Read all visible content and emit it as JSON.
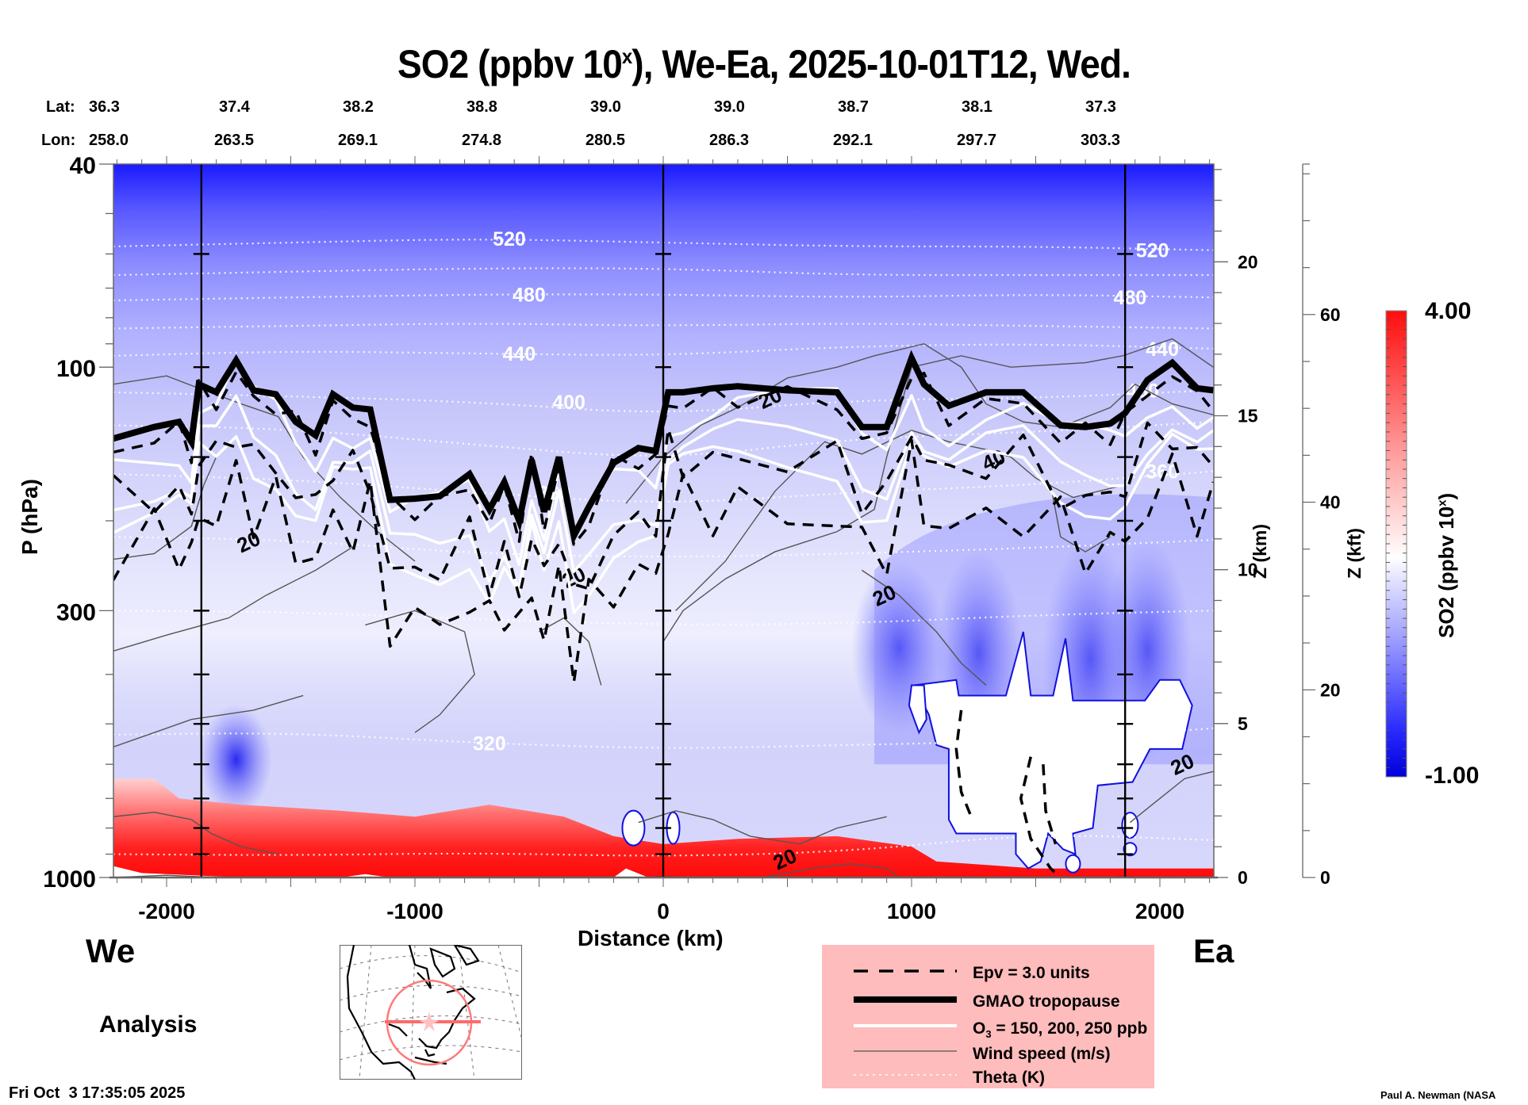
{
  "title": {
    "prefix": "SO2 (ppbv 10",
    "sup": "x",
    "suffix": "), We-Ea, 2025-10-01T12, Wed."
  },
  "location_header": {
    "lat_label": "Lat:",
    "lon_label": "Lon:",
    "lat": [
      "36.3",
      "37.4",
      "38.2",
      "38.8",
      "39.0",
      "39.0",
      "38.7",
      "38.1",
      "37.3"
    ],
    "lon": [
      "258.0",
      "263.5",
      "269.1",
      "274.8",
      "280.5",
      "286.3",
      "292.1",
      "297.7",
      "303.3"
    ]
  },
  "labels": {
    "west": "We",
    "east": "Ea",
    "analysis": "Analysis",
    "timestamp": "Fri Oct  3 17:35:05 2025",
    "credit": "Paul A. Newman (NASA"
  },
  "legend": {
    "items": [
      {
        "key": "epv",
        "text": "Epv = 3.0 units"
      },
      {
        "key": "tropopause",
        "text": "GMAO tropopause"
      },
      {
        "key": "ozone",
        "text_pre": "O",
        "text_sub": "3",
        "text_post": " = 150, 200, 250 ppb"
      },
      {
        "key": "wind",
        "text": "Wind speed (m/s)"
      },
      {
        "key": "theta",
        "text": "Theta (K)"
      }
    ]
  },
  "colors": {
    "cmap_low": "#0000e6",
    "cmap_mid": "#ffffff",
    "cmap_high": "#ff0000",
    "legend_bg": "#ffbcbc",
    "inset_track": "#ff7070"
  },
  "chart_data": {
    "type": "heatmap",
    "title": "SO2 (ppbv 10^x), We-Ea, 2025-10-01T12, Wed.",
    "xlabel": "Distance (km)",
    "ylabel": "P (hPa)",
    "ylabel_right": "Z (km)",
    "ylabel_right2": "Z (kft)",
    "xlim": [
      -2215,
      2215
    ],
    "ylim": [
      1000,
      40
    ],
    "yscale": "log",
    "x_ticks": [
      -2000,
      -1000,
      0,
      1000,
      2000
    ],
    "x_tick_labels": [
      "-2000",
      "-1000",
      "0",
      "1000",
      "2000"
    ],
    "y_ticks": [
      40,
      100,
      300,
      1000
    ],
    "y_tick_labels": [
      "40",
      "100",
      "300",
      "1000"
    ],
    "z_km_ticks": [
      0,
      5,
      10,
      15,
      20
    ],
    "z_km_tick_pressure": [
      1000,
      535,
      265,
      123,
      56
    ],
    "z_kft_ticks": [
      0,
      20,
      40,
      60
    ],
    "z_kft_tick_pressure": [
      1000,
      545,
      290,
      146
    ],
    "section_markers_km": [
      -1860,
      0,
      1860
    ],
    "colorbar": {
      "label": "SO2 (ppbv 10^x)",
      "min": -1.0,
      "max": 4.0,
      "min_label": "-1.00",
      "max_label": "4.00",
      "levels": 50
    },
    "theta_contours": [
      {
        "value": 520,
        "label": "520",
        "p": [
          58,
          57,
          56,
          57,
          58,
          58,
          59
        ],
        "label_x": [
          -620,
          1970
        ]
      },
      {
        "value": 500,
        "p": [
          66,
          65,
          64,
          64,
          66,
          66,
          66
        ]
      },
      {
        "value": 480,
        "label": "480",
        "p": [
          74,
          73,
          72,
          72,
          73,
          72,
          73
        ],
        "label_x": [
          -540,
          1880
        ]
      },
      {
        "value": 460,
        "p": [
          84,
          83,
          82,
          83,
          82,
          83,
          84
        ]
      },
      {
        "value": 440,
        "label": "440",
        "p": [
          95,
          93,
          94,
          95,
          91,
          90,
          92
        ],
        "label_x": [
          -580,
          2010
        ]
      },
      {
        "value": 400,
        "label": "400",
        "p": [
          112,
          114,
          117,
          124,
          116,
          115,
          111
        ],
        "label_x": [
          -380,
          1930
        ]
      },
      {
        "value": 380,
        "p": [
          130,
          132,
          142,
          152,
          138,
          134,
          128
        ]
      },
      {
        "value": 360,
        "label": "360",
        "p": [
          162,
          166,
          176,
          186,
          176,
          170,
          160
        ],
        "label_x": [
          -440,
          2010
        ]
      },
      {
        "value": 340,
        "p": [
          215,
          218,
          232,
          236,
          232,
          226,
          218
        ]
      },
      {
        "value": 330,
        "p": [
          300,
          302,
          312,
          320,
          318,
          306,
          300
        ]
      },
      {
        "value": 320,
        "label": "320",
        "p": [
          525,
          520,
          545,
          560,
          550,
          540,
          510
        ],
        "label_x": [
          -700,
          2000
        ]
      },
      {
        "value": 300,
        "p": [
          900,
          905,
          895,
          910,
          890,
          820,
          845
        ]
      }
    ],
    "theta_x_km": [
      -2215,
      -1500,
      -750,
      0,
      750,
      1500,
      2215
    ],
    "tropopause": {
      "x_km": [
        -2215,
        -2050,
        -1950,
        -1900,
        -1870,
        -1800,
        -1720,
        -1650,
        -1560,
        -1480,
        -1400,
        -1330,
        -1250,
        -1180,
        -1100,
        -1000,
        -900,
        -780,
        -700,
        -640,
        -580,
        -530,
        -480,
        -420,
        -360,
        -300,
        -200,
        -100,
        -30,
        20,
        80,
        200,
        300,
        500,
        700,
        800,
        900,
        1000,
        1050,
        1150,
        1300,
        1450,
        1600,
        1700,
        1800,
        1860,
        1950,
        2050,
        2150,
        2215
      ],
      "p_hPa": [
        138,
        131,
        128,
        140,
        108,
        112,
        97,
        111,
        113,
        128,
        136,
        113,
        120,
        121,
        182,
        181,
        179,
        162,
        190,
        168,
        200,
        152,
        192,
        150,
        214,
        188,
        154,
        144,
        146,
        112,
        112,
        110,
        109,
        111,
        112,
        131,
        131,
        96,
        108,
        119,
        112,
        112,
        130,
        131,
        129,
        123,
        106,
        98,
        110,
        111
      ]
    },
    "epv_3pvu_lines": 3,
    "ozone_contours_ppb": [
      150,
      200,
      250
    ],
    "wind_speed_contour_labels": [
      {
        "value": 20,
        "x_km": -1670,
        "p": 220
      },
      {
        "value": 20,
        "x_km": -360,
        "p": 258
      },
      {
        "value": 20,
        "x_km": 430,
        "p": 115
      },
      {
        "value": 20,
        "x_km": 890,
        "p": 280
      },
      {
        "value": 40,
        "x_km": 1330,
        "p": 152
      },
      {
        "value": 20,
        "x_km": 2090,
        "p": 600
      },
      {
        "value": 20,
        "x_km": 490,
        "p": 920
      }
    ],
    "so2_features": [
      {
        "desc": "boundary-layer high (red) west of 0 km",
        "x_km": [
          -2215,
          0
        ],
        "p_hPa": [
          700,
          1000
        ],
        "value_approx": 3.5
      },
      {
        "desc": "boundary-layer high (red) 0-1000 km",
        "x_km": [
          0,
          1100
        ],
        "p_hPa": [
          820,
          1000
        ],
        "value_approx": 3.0
      },
      {
        "desc": "stratospheric low (blue) aloft",
        "p_hPa": [
          40,
          70
        ],
        "value_approx": -0.8
      },
      {
        "desc": "white masked region (off-scale)",
        "x_km": [
          1000,
          2100
        ],
        "p_hPa": [
          360,
          960
        ]
      },
      {
        "desc": "mid-trop blue plumes",
        "x_km": [
          900,
          2215
        ],
        "p_hPa": [
          170,
          450
        ],
        "value_approx": -0.3
      }
    ],
    "legend_placement": "bottom-right"
  },
  "inset_map": {
    "desc": "North America polar-stereographic map with cross-section track",
    "track_center": {
      "lat": 39.0,
      "lon": 280.5
    }
  }
}
